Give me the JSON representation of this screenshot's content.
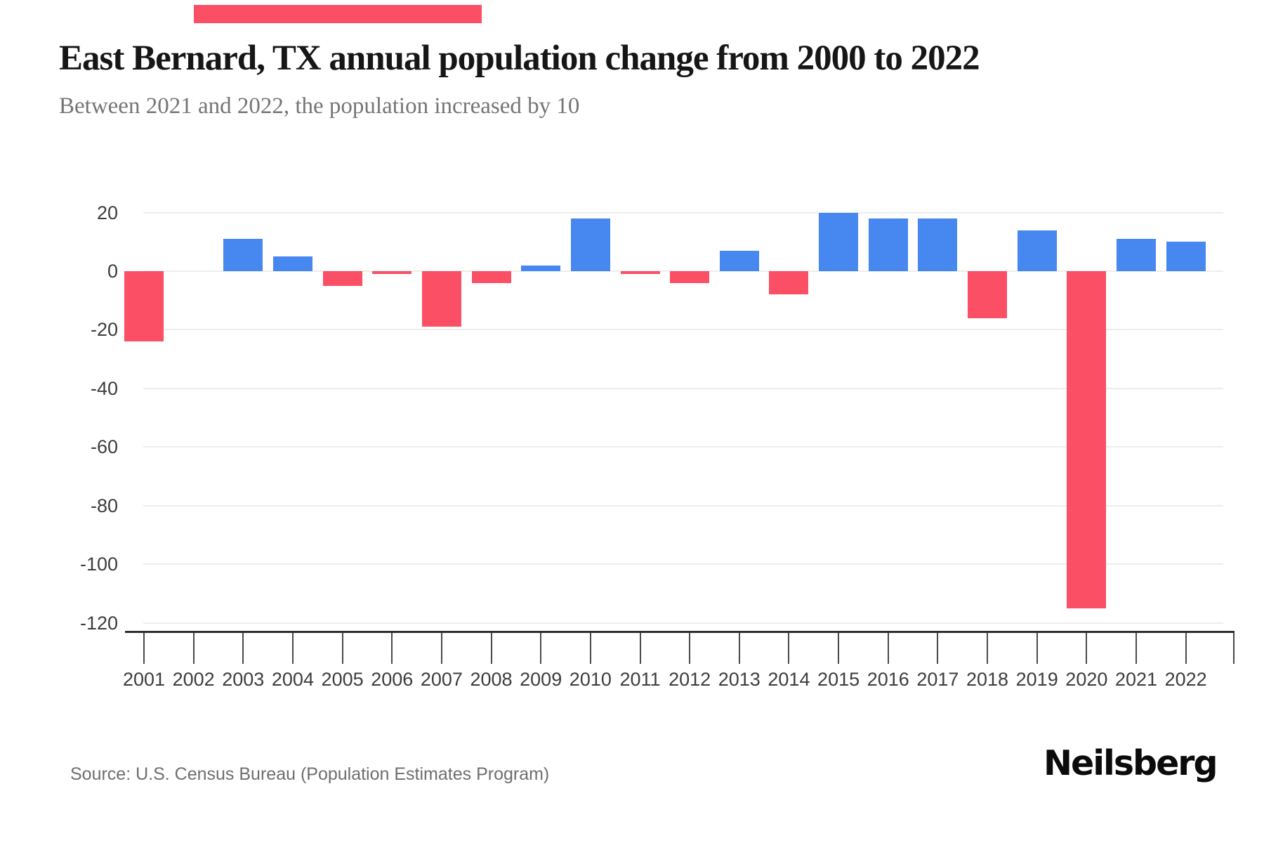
{
  "accent": {
    "top_bar_color": "#fb4f66"
  },
  "chart_data": {
    "type": "bar",
    "title": "East Bernard, TX annual population change from 2000 to 2022",
    "subtitle": "Between 2021 and 2022, the population increased by 10",
    "categories": [
      "2001",
      "2002",
      "2003",
      "2004",
      "2005",
      "2006",
      "2007",
      "2008",
      "2009",
      "2010",
      "2011",
      "2012",
      "2013",
      "2014",
      "2015",
      "2016",
      "2017",
      "2018",
      "2019",
      "2020",
      "2021",
      "2022"
    ],
    "values": [
      -24,
      0,
      11,
      5,
      -5,
      -1,
      -19,
      -4,
      2,
      18,
      -1,
      -4,
      7,
      -8,
      20,
      18,
      18,
      -16,
      14,
      -115,
      11,
      10
    ],
    "positive_color": "#4687f0",
    "negative_color": "#fb4f66",
    "yticks": [
      20,
      0,
      -20,
      -40,
      -60,
      -80,
      -100,
      -120
    ],
    "ylim": [
      -123,
      23
    ],
    "grid": true,
    "legend": false,
    "xlabel": "",
    "ylabel": ""
  },
  "footer": {
    "source": "Source: U.S. Census Bureau (Population Estimates Program)",
    "logo_text": "Neilsberg"
  }
}
